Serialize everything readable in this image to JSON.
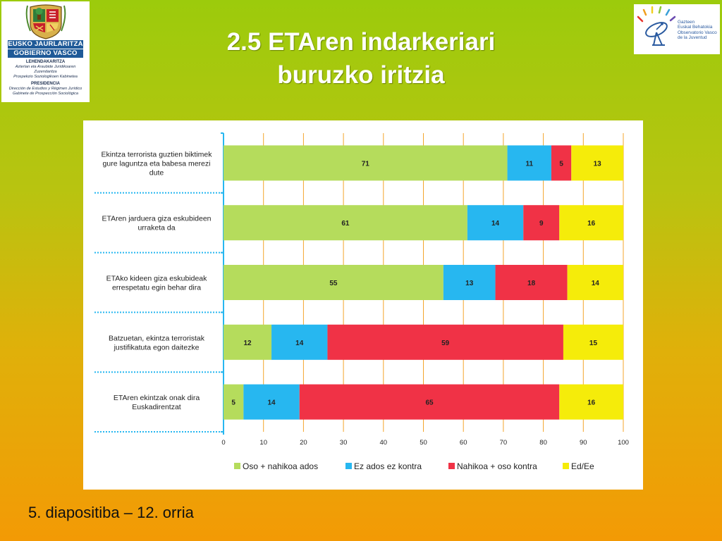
{
  "header": {
    "title_line1": "2.5 ETAren indarkeriari",
    "title_line2": "buruzko iritzia"
  },
  "logo_left": {
    "line1": "EUSKO JAURLARITZA",
    "line2": "GOBIERNO VASCO",
    "dept1": "LEHENDAKARITZA",
    "dept1_sub1": "Azterlan eta Araubide Juridikoaren Zuzendaritza",
    "dept1_sub2": "Prospekzio Soziologikoen Kabinetea",
    "dept2": "PRESIDENCIA",
    "dept2_sub1": "Dirección de Estudios y Régimen Jurídico",
    "dept2_sub2": "Gabinete de Prospección Sociológica",
    "icon": "coat-of-arms-icon"
  },
  "logo_right": {
    "line1": "Gazteen",
    "line2": "Euskal Behatokia",
    "line3": "Observatorio Vasco",
    "line4": "de la Juventud",
    "icon": "satellite-dish-icon"
  },
  "footer": {
    "text": "5. diapositiba – 12. orria"
  },
  "chart_data": {
    "type": "bar",
    "orientation": "horizontal",
    "stacked": true,
    "categories": [
      "Ekintza terrorista guztien biktimek gure laguntza eta babesa merezi dute",
      "ETAren jarduera giza eskubideen urraketa da",
      "ETAko kideen giza eskubideak errespetatu egin behar dira",
      "Batzuetan, ekintza terroristak justifikatuta egon daitezke",
      "ETAren ekintzak onak dira Euskadirentzat"
    ],
    "category_lines": [
      [
        "Ekintza terrorista guztien biktimek",
        "gure laguntza eta babesa merezi",
        "dute"
      ],
      [
        "ETAren jarduera giza eskubideen",
        "urraketa da"
      ],
      [
        "ETAko kideen giza eskubideak",
        "errespetatu egin behar dira"
      ],
      [
        "Batzuetan, ekintza terroristak",
        "justifikatuta egon daitezke"
      ],
      [
        "ETAren ekintzak onak dira",
        "Euskadirentzat"
      ]
    ],
    "series": [
      {
        "name": "Oso + nahikoa ados",
        "color": "#b5dc5c",
        "values": [
          71,
          61,
          55,
          12,
          5
        ]
      },
      {
        "name": "Ez ados ez kontra",
        "color": "#27b7f0",
        "values": [
          11,
          14,
          13,
          14,
          14
        ]
      },
      {
        "name": "Nahikoa + oso kontra",
        "color": "#f03246",
        "values": [
          5,
          9,
          18,
          59,
          65
        ]
      },
      {
        "name": "Ed/Ee",
        "color": "#f5ec0a",
        "values": [
          13,
          16,
          14,
          15,
          16
        ]
      }
    ],
    "xlim": [
      0,
      100
    ],
    "xticks": [
      0,
      10,
      20,
      30,
      40,
      50,
      60,
      70,
      80,
      90,
      100
    ],
    "grid": true,
    "gridline_color": "#f4a52c",
    "legend_position": "bottom",
    "title": "",
    "xlabel": "",
    "ylabel": ""
  }
}
